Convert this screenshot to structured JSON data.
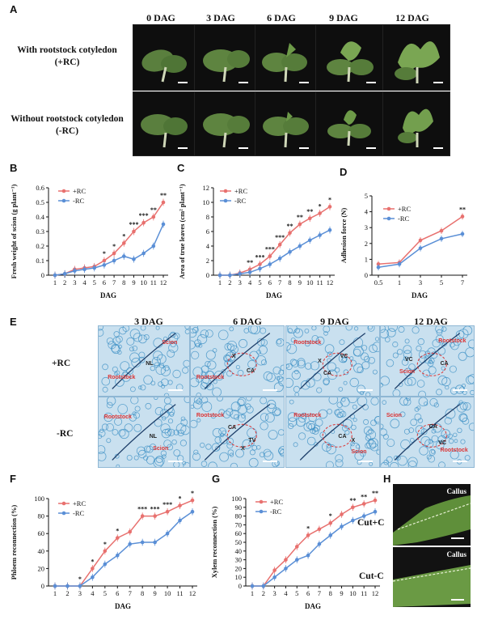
{
  "panel_labels": {
    "A": "A",
    "B": "B",
    "C": "C",
    "D": "D",
    "E": "E",
    "F": "F",
    "G": "G",
    "H": "H"
  },
  "panelA": {
    "columns": [
      "0 DAG",
      "3 DAG",
      "6 DAG",
      "9 DAG",
      "12 DAG"
    ],
    "rows": [
      {
        "line1": "With rootstock cotyledon",
        "line2": "(+RC)"
      },
      {
        "line1": "Without rootstock cotyledon",
        "line2": "(-RC)"
      }
    ]
  },
  "panelE": {
    "columns": [
      "3 DAG",
      "6 DAG",
      "9 DAG",
      "12 DAG"
    ],
    "rows": [
      "+RC",
      "-RC"
    ],
    "annotations": [
      "Rootstock",
      "Scion",
      "NL",
      "X",
      "CA",
      "VC",
      "TV"
    ]
  },
  "panelH": {
    "rows": [
      "Cut+C",
      "Cut-C"
    ],
    "tag": "Callus"
  },
  "colors": {
    "plusRC": "#e8716f",
    "minusRC": "#5a8fd6",
    "stain": "#3b8fc4",
    "photo_bg": "#0e0e0e"
  },
  "chart_data": [
    {
      "id": "B",
      "type": "line",
      "ylabel": "Fresh weight of scion (g plant⁻¹)",
      "xlabel": "DAG",
      "x": [
        "1",
        "2",
        "3",
        "4",
        "5",
        "6",
        "7",
        "8",
        "9",
        "10",
        "11",
        "12"
      ],
      "ylim": [
        0,
        0.6
      ],
      "yticks": [
        "0",
        "0.1",
        "0.2",
        "0.3",
        "0.4",
        "0.5",
        "0.6"
      ],
      "series": [
        {
          "name": "+RC",
          "values": [
            0.0,
            0.01,
            0.04,
            0.05,
            0.06,
            0.1,
            0.15,
            0.22,
            0.3,
            0.36,
            0.4,
            0.5
          ]
        },
        {
          "name": "-RC",
          "values": [
            0.0,
            0.01,
            0.03,
            0.04,
            0.05,
            0.07,
            0.1,
            0.13,
            0.11,
            0.15,
            0.2,
            0.35
          ]
        }
      ],
      "sig": {
        "6": "*",
        "7": "*",
        "8": "*",
        "9": "***",
        "10": "***",
        "11": "**",
        "12": "**"
      }
    },
    {
      "id": "C",
      "type": "line",
      "ylabel": "Area of true leaves (cm² plant⁻¹)",
      "xlabel": "DAG",
      "x": [
        "1",
        "2",
        "3",
        "4",
        "5",
        "6",
        "7",
        "8",
        "9",
        "10",
        "11",
        "12"
      ],
      "ylim": [
        0,
        12
      ],
      "yticks": [
        "0",
        "2",
        "4",
        "6",
        "8",
        "10",
        "12"
      ],
      "series": [
        {
          "name": "+RC",
          "values": [
            0.0,
            0.0,
            0.3,
            0.8,
            1.5,
            2.6,
            4.2,
            5.8,
            7.0,
            7.8,
            8.5,
            9.4
          ]
        },
        {
          "name": "-RC",
          "values": [
            0.0,
            0.0,
            0.2,
            0.4,
            0.9,
            1.5,
            2.3,
            3.2,
            4.0,
            4.8,
            5.5,
            6.2
          ]
        }
      ],
      "sig": {
        "4": "**",
        "5": "***",
        "6": "***",
        "7": "***",
        "8": "**",
        "9": "**",
        "10": "**",
        "11": "*",
        "12": "*"
      }
    },
    {
      "id": "D",
      "type": "line",
      "ylabel": "Adhesion force (N)",
      "xlabel": "DAG",
      "x": [
        "0.5",
        "1",
        "3",
        "5",
        "7"
      ],
      "ylim": [
        0,
        5
      ],
      "yticks": [
        "0",
        "1",
        "2",
        "3",
        "4",
        "5"
      ],
      "series": [
        {
          "name": "+RC",
          "values": [
            0.7,
            0.8,
            2.2,
            2.8,
            3.7
          ]
        },
        {
          "name": "-RC",
          "values": [
            0.5,
            0.7,
            1.7,
            2.3,
            2.6
          ]
        }
      ],
      "sig": {
        "7": "**"
      }
    },
    {
      "id": "F",
      "type": "line",
      "ylabel": "Phloem reconnection (%)",
      "xlabel": "DAG",
      "x": [
        "1",
        "2",
        "3",
        "4",
        "5",
        "6",
        "7",
        "8",
        "9",
        "10",
        "11",
        "12"
      ],
      "ylim": [
        0,
        100
      ],
      "yticks": [
        "0",
        "20",
        "40",
        "60",
        "80",
        "100"
      ],
      "series": [
        {
          "name": "+RC",
          "values": [
            0,
            0,
            0,
            20,
            40,
            55,
            62,
            80,
            80,
            85,
            92,
            98
          ]
        },
        {
          "name": "-RC",
          "values": [
            0,
            0,
            0,
            10,
            25,
            35,
            48,
            50,
            50,
            60,
            75,
            85
          ]
        }
      ],
      "sig": {
        "3": "*",
        "4": "*",
        "5": "*",
        "6": "*",
        "8": "***",
        "9": "***",
        "10": "***",
        "11": "*",
        "12": "*"
      }
    },
    {
      "id": "G",
      "type": "line",
      "ylabel": "Xylem reconnection (%)",
      "xlabel": "DAG",
      "x": [
        "1",
        "2",
        "3",
        "4",
        "5",
        "6",
        "7",
        "8",
        "9",
        "10",
        "11",
        "12"
      ],
      "ylim": [
        0,
        100
      ],
      "yticks": [
        "0",
        "10",
        "20",
        "30",
        "40",
        "50",
        "60",
        "70",
        "80",
        "90",
        "100"
      ],
      "series": [
        {
          "name": "+RC",
          "values": [
            0,
            0,
            18,
            30,
            45,
            58,
            65,
            72,
            82,
            90,
            94,
            98
          ]
        },
        {
          "name": "-RC",
          "values": [
            0,
            0,
            10,
            20,
            30,
            35,
            48,
            58,
            68,
            75,
            80,
            85
          ]
        }
      ],
      "sig": {
        "6": "*",
        "8": "*",
        "10": "**",
        "11": "**",
        "12": "**"
      }
    }
  ]
}
